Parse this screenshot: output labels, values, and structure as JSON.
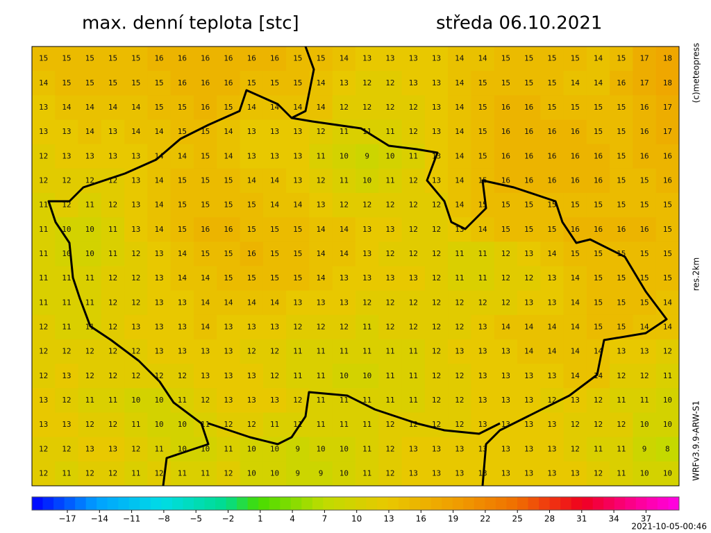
{
  "header": {
    "title": "max. denní teplota [stc]",
    "date": "středa 06.10.2021"
  },
  "side_labels": [
    "(c)meteopress",
    "res.2km",
    "WRFv3.9.9-ARW-S1"
  ],
  "timestamp": "2021-10-05-00:46",
  "field": {
    "rows": [
      [
        15,
        15,
        15,
        15,
        15,
        16,
        16,
        16,
        16,
        16,
        16,
        15,
        15,
        14,
        13,
        13,
        13,
        13,
        14,
        14,
        15,
        15,
        15,
        15,
        14,
        15,
        17,
        18
      ],
      [
        14,
        15,
        15,
        15,
        15,
        15,
        16,
        16,
        16,
        15,
        15,
        15,
        14,
        13,
        12,
        12,
        13,
        13,
        14,
        15,
        15,
        15,
        15,
        14,
        14,
        16,
        17,
        18
      ],
      [
        13,
        14,
        14,
        14,
        14,
        15,
        15,
        16,
        15,
        14,
        14,
        14,
        14,
        12,
        12,
        12,
        12,
        13,
        14,
        15,
        16,
        16,
        15,
        15,
        15,
        15,
        16,
        17
      ],
      [
        13,
        13,
        14,
        13,
        14,
        14,
        15,
        15,
        14,
        13,
        13,
        13,
        12,
        11,
        11,
        11,
        12,
        13,
        14,
        15,
        16,
        16,
        16,
        16,
        15,
        15,
        16,
        17
      ],
      [
        12,
        13,
        13,
        13,
        13,
        14,
        14,
        15,
        14,
        13,
        13,
        13,
        11,
        10,
        9,
        10,
        11,
        13,
        14,
        15,
        16,
        16,
        16,
        16,
        16,
        15,
        16,
        16
      ],
      [
        12,
        12,
        12,
        12,
        13,
        14,
        15,
        15,
        15,
        14,
        14,
        13,
        12,
        11,
        10,
        11,
        12,
        13,
        14,
        15,
        16,
        16,
        16,
        16,
        16,
        15,
        15,
        16
      ],
      [
        11,
        12,
        11,
        12,
        13,
        14,
        15,
        15,
        15,
        15,
        14,
        14,
        13,
        12,
        12,
        12,
        12,
        12,
        14,
        15,
        15,
        15,
        15,
        15,
        15,
        15,
        15,
        15
      ],
      [
        11,
        10,
        10,
        11,
        13,
        14,
        15,
        16,
        16,
        15,
        15,
        15,
        14,
        14,
        13,
        13,
        12,
        12,
        13,
        14,
        15,
        15,
        15,
        16,
        16,
        16,
        16,
        15
      ],
      [
        11,
        10,
        10,
        11,
        12,
        13,
        14,
        15,
        15,
        16,
        15,
        15,
        14,
        14,
        13,
        12,
        12,
        12,
        11,
        11,
        12,
        13,
        14,
        15,
        15,
        15,
        15,
        15
      ],
      [
        11,
        11,
        11,
        12,
        12,
        13,
        14,
        14,
        15,
        15,
        15,
        15,
        14,
        13,
        13,
        13,
        13,
        12,
        11,
        11,
        12,
        12,
        13,
        14,
        15,
        15,
        15,
        15
      ],
      [
        11,
        11,
        11,
        12,
        12,
        13,
        13,
        14,
        14,
        14,
        14,
        13,
        13,
        13,
        12,
        12,
        12,
        12,
        12,
        12,
        12,
        13,
        13,
        14,
        15,
        15,
        15,
        14
      ],
      [
        12,
        11,
        11,
        12,
        13,
        13,
        13,
        14,
        13,
        13,
        13,
        12,
        12,
        12,
        11,
        12,
        12,
        12,
        12,
        13,
        14,
        14,
        14,
        14,
        15,
        15,
        14,
        14
      ],
      [
        12,
        12,
        12,
        12,
        12,
        13,
        13,
        13,
        13,
        12,
        12,
        11,
        11,
        11,
        11,
        11,
        11,
        12,
        13,
        13,
        13,
        14,
        14,
        14,
        14,
        13,
        13,
        12
      ],
      [
        12,
        13,
        12,
        12,
        12,
        12,
        12,
        13,
        13,
        13,
        12,
        11,
        11,
        10,
        10,
        11,
        11,
        12,
        12,
        13,
        13,
        13,
        13,
        14,
        14,
        12,
        12,
        11
      ],
      [
        13,
        12,
        11,
        11,
        10,
        10,
        11,
        12,
        13,
        13,
        13,
        12,
        11,
        11,
        11,
        11,
        11,
        12,
        12,
        13,
        13,
        13,
        12,
        13,
        12,
        11,
        11,
        10
      ],
      [
        13,
        13,
        12,
        12,
        11,
        10,
        10,
        11,
        12,
        12,
        11,
        11,
        11,
        11,
        11,
        12,
        12,
        12,
        12,
        13,
        13,
        13,
        13,
        12,
        12,
        12,
        10,
        10
      ],
      [
        12,
        12,
        13,
        13,
        12,
        11,
        10,
        10,
        11,
        10,
        10,
        9,
        10,
        10,
        11,
        12,
        13,
        13,
        13,
        13,
        13,
        13,
        13,
        12,
        11,
        11,
        9,
        8
      ],
      [
        12,
        11,
        12,
        12,
        11,
        12,
        11,
        11,
        12,
        10,
        10,
        9,
        9,
        10,
        11,
        12,
        13,
        13,
        13,
        13,
        13,
        13,
        13,
        13,
        12,
        11,
        10,
        10
      ]
    ]
  },
  "colorbar": {
    "ticks": [
      {
        "value": -17,
        "label": "−17"
      },
      {
        "value": -14,
        "label": "−14"
      },
      {
        "value": -11,
        "label": "−11"
      },
      {
        "value": -8,
        "label": "−8"
      },
      {
        "value": -5,
        "label": "−5"
      },
      {
        "value": -2,
        "label": "−2"
      },
      1,
      4,
      7,
      10,
      13,
      16,
      19,
      22,
      25,
      28,
      31,
      34,
      37
    ]
  }
}
